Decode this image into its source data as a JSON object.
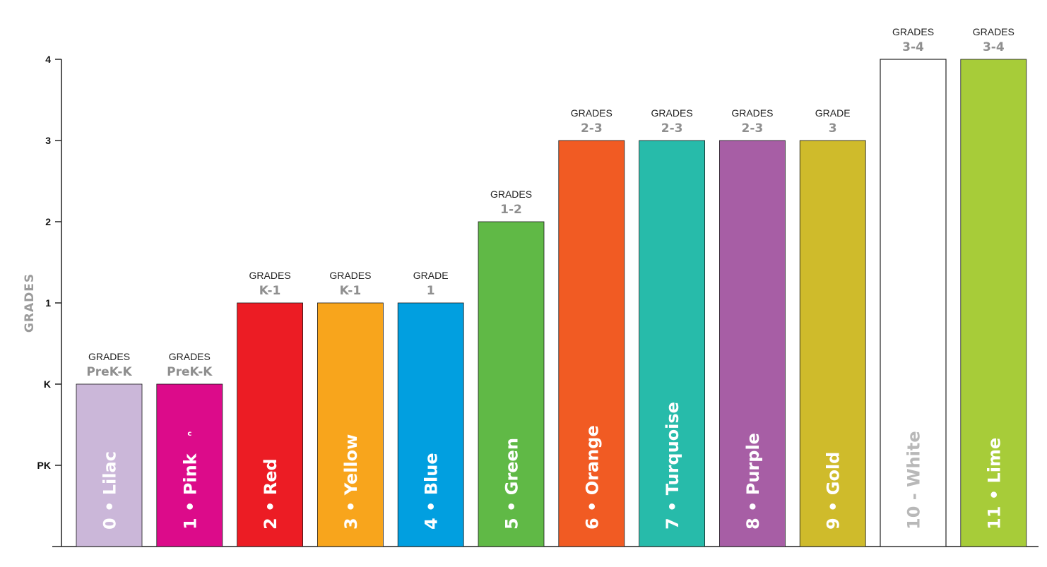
{
  "chart_data": {
    "type": "bar",
    "ylabel": "GRADES",
    "xlabel": "",
    "y_ticks": [
      {
        "label": "PK",
        "value": 0
      },
      {
        "label": "K",
        "value": 1
      },
      {
        "label": "1",
        "value": 2
      },
      {
        "label": "2",
        "value": 3
      },
      {
        "label": "3",
        "value": 4
      },
      {
        "label": "4",
        "value": 5
      }
    ],
    "ylim": [
      -1,
      5
    ],
    "grid": false,
    "bars": [
      {
        "label": "0 • Lilac",
        "value": 1,
        "color": "#cbb7d9",
        "text_color": "#ffffff",
        "outline": false,
        "grade_top": "GRADES",
        "grade_range": "PreK-K"
      },
      {
        "label": "1 • Pink",
        "value": 1,
        "color": "#dc0b8a",
        "text_color": "#ffffff",
        "outline": false,
        "grade_top": "GRADES",
        "grade_range": "PreK-K",
        "note": "c"
      },
      {
        "label": "2 • Red",
        "value": 2,
        "color": "#ec1c24",
        "text_color": "#ffffff",
        "outline": false,
        "grade_top": "GRADES",
        "grade_range": "K-1"
      },
      {
        "label": "3 • Yellow",
        "value": 2,
        "color": "#f8a51c",
        "text_color": "#ffffff",
        "outline": false,
        "grade_top": "GRADES",
        "grade_range": "K-1"
      },
      {
        "label": "4 • Blue",
        "value": 2,
        "color": "#019fe0",
        "text_color": "#ffffff",
        "outline": false,
        "grade_top": "GRADE",
        "grade_range": "1"
      },
      {
        "label": "5 • Green",
        "value": 3,
        "color": "#60b946",
        "text_color": "#ffffff",
        "outline": false,
        "grade_top": "GRADES",
        "grade_range": "1-2"
      },
      {
        "label": "6 • Orange",
        "value": 4,
        "color": "#f15b23",
        "text_color": "#ffffff",
        "outline": false,
        "grade_top": "GRADES",
        "grade_range": "2-3"
      },
      {
        "label": "7 • Turquoise",
        "value": 4,
        "color": "#27bbaa",
        "text_color": "#ffffff",
        "outline": false,
        "grade_top": "GRADES",
        "grade_range": "2-3"
      },
      {
        "label": "8 • Purple",
        "value": 4,
        "color": "#a75ea5",
        "text_color": "#ffffff",
        "outline": false,
        "grade_top": "GRADES",
        "grade_range": "2-3"
      },
      {
        "label": "9 • Gold",
        "value": 4,
        "color": "#cfbb2b",
        "text_color": "#ffffff",
        "outline": false,
        "grade_top": "GRADE",
        "grade_range": "3"
      },
      {
        "label": "10 - White",
        "value": 5,
        "color": "#ffffff",
        "text_color": "#b8b8b8",
        "outline": true,
        "grade_top": "GRADES",
        "grade_range": "3-4"
      },
      {
        "label": "11 • Lime",
        "value": 5,
        "color": "#a7cc39",
        "text_color": "#ffffff",
        "outline": false,
        "grade_top": "GRADES",
        "grade_range": "3-4"
      }
    ]
  }
}
